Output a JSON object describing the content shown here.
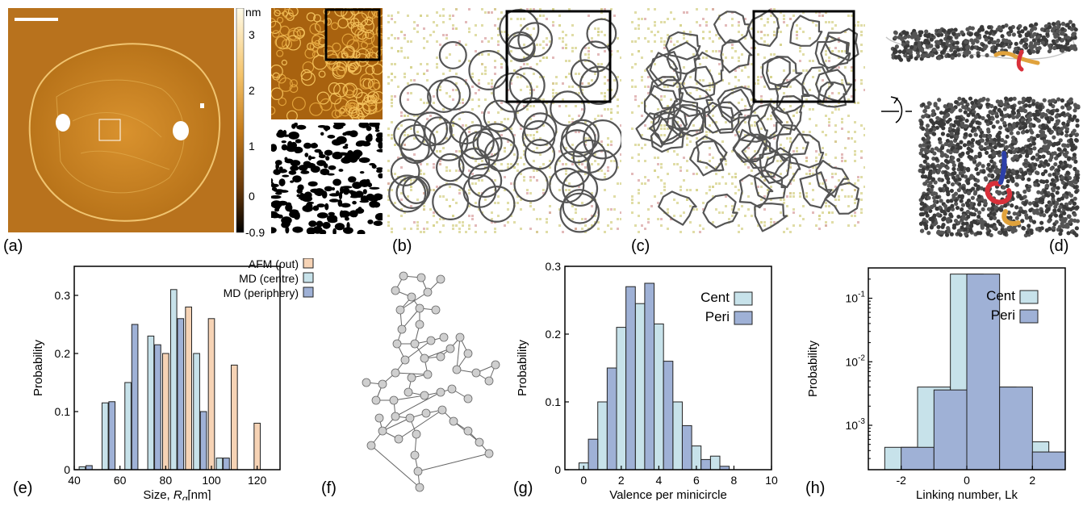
{
  "panel_labels": {
    "a": "(a)",
    "b": "(b)",
    "c": "(c)",
    "d": "(d)",
    "e": "(e)",
    "f": "(f)",
    "g": "(g)",
    "h": "(h)"
  },
  "colorbar": {
    "unit": "nm",
    "ticks": [
      "3",
      "2",
      "1",
      "0",
      "-0.9"
    ]
  },
  "colors": {
    "afm": "#f6d3b5",
    "centre": "#c7e2ea",
    "periphery": "#9fb1d6",
    "afm_image_base": "#c47a1a",
    "loop": "#555555"
  },
  "chart_data": [
    {
      "id": "e",
      "type": "bar",
      "xlabel": "Size, Rg[nm]",
      "xlabel_main": "Size, ",
      "xlabel_sym": "R",
      "xlabel_sub": "g",
      "xlabel_unit": "[nm]",
      "ylabel": "Probability",
      "xlim": [
        40,
        130
      ],
      "ylim": [
        0,
        0.35
      ],
      "xticks": [
        40,
        60,
        80,
        100,
        120
      ],
      "yticks": [
        0,
        0.1,
        0.2,
        0.3
      ],
      "bin_width": 5,
      "legend": "top-right",
      "series": [
        {
          "name": "AFM (out)",
          "x": [
            80,
            90,
            100,
            110,
            120
          ],
          "values": [
            0.2,
            0.28,
            0.26,
            0.18,
            0.08
          ]
        },
        {
          "name": "MD (centre)",
          "x": [
            43.5,
            53.5,
            63.5,
            73.5,
            83.5,
            93.5,
            103.5
          ],
          "values": [
            0.005,
            0.115,
            0.15,
            0.23,
            0.31,
            0.2,
            0.02
          ]
        },
        {
          "name": "MD (periphery)",
          "x": [
            46.5,
            56.5,
            66.5,
            76.5,
            86.5,
            96.5,
            106.5
          ],
          "values": [
            0.007,
            0.117,
            0.25,
            0.215,
            0.26,
            0.1,
            0.02
          ]
        }
      ]
    },
    {
      "id": "g",
      "type": "bar",
      "xlabel": "Valence per minicircle",
      "ylabel": "Probability",
      "xlim": [
        -1,
        10
      ],
      "ylim": [
        0,
        0.3
      ],
      "xticks": [
        0,
        2,
        4,
        6,
        8,
        10
      ],
      "yticks": [
        0,
        0.1,
        0.2,
        0.3
      ],
      "bin_width": 0.5,
      "legend": "top-right",
      "series": [
        {
          "name": "Cent",
          "x": [
            0,
            1,
            2,
            3,
            4,
            5,
            6,
            7
          ],
          "values": [
            0.01,
            0.1,
            0.21,
            0.245,
            0.215,
            0.1,
            0.035,
            0.02
          ]
        },
        {
          "name": "Peri",
          "x": [
            0.5,
            1.5,
            2.5,
            3.5,
            4.5,
            5.5,
            6.5,
            7.5
          ],
          "values": [
            0.045,
            0.15,
            0.27,
            0.275,
            0.16,
            0.065,
            0.015,
            0.005
          ]
        }
      ]
    },
    {
      "id": "h",
      "type": "bar",
      "xlabel": "Linking number, Lk",
      "ylabel": "Probability",
      "yscale": "log",
      "xlim": [
        -3,
        3
      ],
      "ylim": [
        0.0002,
        0.3
      ],
      "xticks": [
        -2,
        0,
        2
      ],
      "yticks": [
        "10-3",
        "10-2",
        "10-1"
      ],
      "legend": "top-right",
      "series": [
        {
          "name": "Cent",
          "x": [
            -2,
            -1,
            0,
            1,
            2
          ],
          "values": [
            0.00045,
            0.004,
            0.24,
            0.004,
            0.00055
          ]
        },
        {
          "name": "Peri",
          "x": [
            -1.5,
            -0.5,
            0.5,
            1.5,
            2.5
          ],
          "values": [
            0.00045,
            0.0036,
            0.24,
            0.004,
            0.00038
          ]
        }
      ]
    }
  ]
}
